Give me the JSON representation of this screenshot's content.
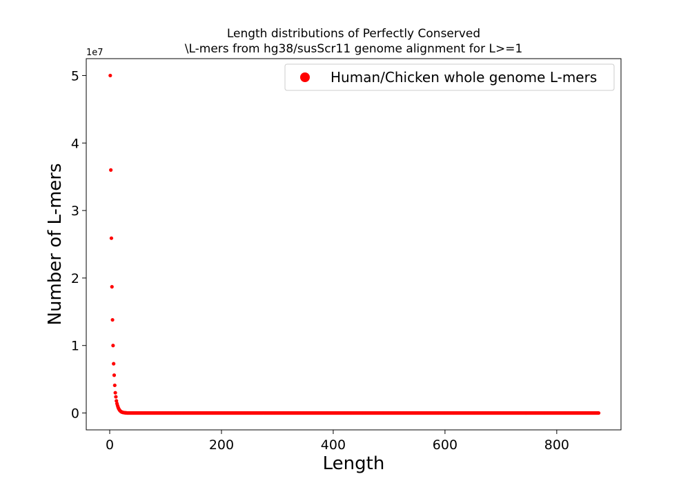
{
  "chart_data": {
    "type": "scatter",
    "title_lines": [
      "Length distributions of Perfectly Conserved",
      "\\L-mers from hg38/susScr11 genome alignment for L>=1"
    ],
    "xlabel": "Length",
    "ylabel": "Number of L-mers",
    "y_offset_label": "1e7",
    "xlim": [
      -42,
      915
    ],
    "ylim": [
      -2500000,
      52500000
    ],
    "x_ticks": [
      0,
      200,
      400,
      600,
      800
    ],
    "x_tick_labels": [
      "0",
      "200",
      "400",
      "600",
      "800"
    ],
    "y_ticks": [
      0,
      10000000,
      20000000,
      30000000,
      40000000,
      50000000
    ],
    "y_tick_labels": [
      "0",
      "1",
      "2",
      "3",
      "4",
      "5"
    ],
    "legend_position": "top-right",
    "grid": false,
    "series": [
      {
        "name": "Human/Chicken whole genome L-mers",
        "color": "#ff0000",
        "points": [
          [
            1,
            50000000
          ],
          [
            2,
            36000000
          ],
          [
            3,
            25900000
          ],
          [
            4,
            18700000
          ],
          [
            5,
            13800000
          ],
          [
            6,
            10000000
          ],
          [
            7,
            7300000
          ],
          [
            8,
            5600000
          ],
          [
            9,
            4100000
          ],
          [
            10,
            3000000
          ],
          [
            11,
            2400000
          ],
          [
            12,
            1800000
          ],
          [
            13,
            1400000
          ],
          [
            14,
            1100000
          ],
          [
            15,
            850000
          ],
          [
            16,
            650000
          ],
          [
            17,
            500000
          ],
          [
            18,
            380000
          ],
          [
            19,
            290000
          ],
          [
            20,
            220000
          ],
          [
            21,
            170000
          ],
          [
            22,
            130000
          ],
          [
            23,
            100000
          ],
          [
            24,
            80000
          ],
          [
            25,
            60000
          ],
          [
            26,
            48000
          ],
          [
            27,
            38000
          ],
          [
            28,
            30000
          ],
          [
            29,
            24000
          ],
          [
            30,
            19000
          ]
        ],
        "tail": {
          "x_start": 31,
          "x_end": 875,
          "approx_value": 0
        }
      }
    ]
  }
}
